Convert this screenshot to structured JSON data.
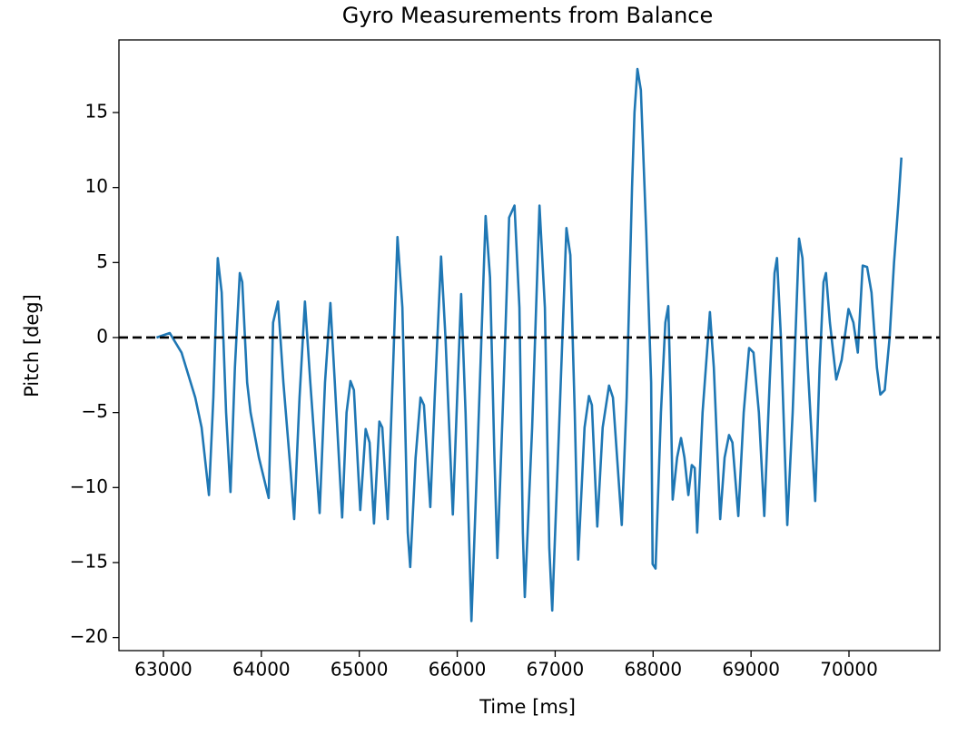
{
  "chart_data": {
    "type": "line",
    "title": "Gyro Measurements from Balance",
    "x_label": "Time [ms]",
    "y_label": "Pitch [deg]",
    "color": "#1f77b4",
    "xlim": [
      62546,
      70927
    ],
    "ylim": [
      -20.87,
      19.84
    ],
    "xticks": [
      63000,
      64000,
      65000,
      66000,
      67000,
      68000,
      69000,
      70000
    ],
    "yticks": [
      {
        "value": -20,
        "label": "−20"
      },
      {
        "value": -15,
        "label": "−15"
      },
      {
        "value": -10,
        "label": "−10"
      },
      {
        "value": -5,
        "label": "−5"
      },
      0,
      5,
      10,
      15
    ],
    "hline": {
      "y": 0,
      "color": "#000000",
      "dashed": true
    },
    "x": [
      62930,
      63065,
      63185,
      63325,
      63390,
      63465,
      63510,
      63555,
      63595,
      63640,
      63685,
      63730,
      63780,
      63805,
      63855,
      63890,
      63975,
      64075,
      64120,
      64170,
      64225,
      64300,
      64335,
      64390,
      64445,
      64500,
      64595,
      64650,
      64705,
      64750,
      64825,
      64870,
      64910,
      64945,
      65010,
      65065,
      65105,
      65150,
      65205,
      65235,
      65290,
      65345,
      65390,
      65440,
      65495,
      65520,
      65575,
      65625,
      65660,
      65725,
      65770,
      65835,
      65880,
      65955,
      66005,
      66040,
      66085,
      66145,
      66205,
      66290,
      66335,
      66380,
      66410,
      66475,
      66530,
      66585,
      66635,
      66670,
      66690,
      66765,
      66840,
      66895,
      66940,
      66970,
      67040,
      67115,
      67155,
      67200,
      67235,
      67300,
      67345,
      67375,
      67430,
      67485,
      67550,
      67590,
      67680,
      67730,
      67785,
      67810,
      67840,
      67875,
      67930,
      67980,
      67995,
      68025,
      68080,
      68125,
      68155,
      68180,
      68200,
      68245,
      68285,
      68320,
      68360,
      68395,
      68425,
      68450,
      68505,
      68580,
      68620,
      68685,
      68730,
      68775,
      68810,
      68870,
      68925,
      68980,
      69025,
      69080,
      69135,
      69190,
      69240,
      69265,
      69305,
      69370,
      69425,
      69490,
      69525,
      69580,
      69655,
      69700,
      69740,
      69765,
      69805,
      69870,
      69925,
      69995,
      70045,
      70090,
      70140,
      70185,
      70230,
      70285,
      70320,
      70365,
      70415,
      70460,
      70505,
      70535
    ],
    "values": [
      0,
      0.3,
      -1,
      -4,
      -6,
      -10.5,
      -4,
      5.3,
      3,
      -5,
      -10.3,
      -2,
      4.3,
      3.7,
      -3,
      -5,
      -8,
      -10.7,
      1,
      2.4,
      -3,
      -9,
      -12.1,
      -4,
      2.4,
      -3,
      -11.7,
      -3,
      2.3,
      -3,
      -12,
      -5,
      -2.9,
      -3.5,
      -11.5,
      -6.1,
      -7,
      -12.4,
      -5.6,
      -6,
      -12.1,
      -2,
      6.7,
      2,
      -13,
      -15.3,
      -8,
      -4,
      -4.5,
      -11.3,
      -4,
      5.4,
      0,
      -11.8,
      -3,
      2.9,
      -5,
      -18.9,
      -8,
      8.1,
      4,
      -8,
      -14.7,
      -3,
      8,
      8.8,
      2,
      -13,
      -17.3,
      -6,
      8.8,
      2,
      -14,
      -18.2,
      -6,
      7.3,
      5.5,
      -5,
      -14.8,
      -6,
      -3.9,
      -4.5,
      -12.6,
      -6,
      -3.2,
      -4,
      -12.5,
      -4,
      10,
      15,
      17.9,
      16.5,
      7,
      -3,
      -15.1,
      -15.4,
      -5,
      1,
      2.1,
      -4,
      -10.8,
      -8,
      -6.7,
      -8,
      -10.5,
      -8.5,
      -8.7,
      -13,
      -5,
      1.7,
      -2,
      -12.1,
      -8,
      -6.5,
      -7,
      -11.9,
      -5,
      -0.7,
      -1,
      -5,
      -11.9,
      -3,
      4.3,
      5.3,
      0,
      -12.5,
      -5,
      6.6,
      5.3,
      -2,
      -10.9,
      -2,
      3.7,
      4.3,
      1,
      -2.8,
      -1.5,
      1.9,
      1,
      -1,
      4.8,
      4.7,
      3,
      -2,
      -3.8,
      -3.5,
      0,
      5,
      9,
      12
    ]
  }
}
